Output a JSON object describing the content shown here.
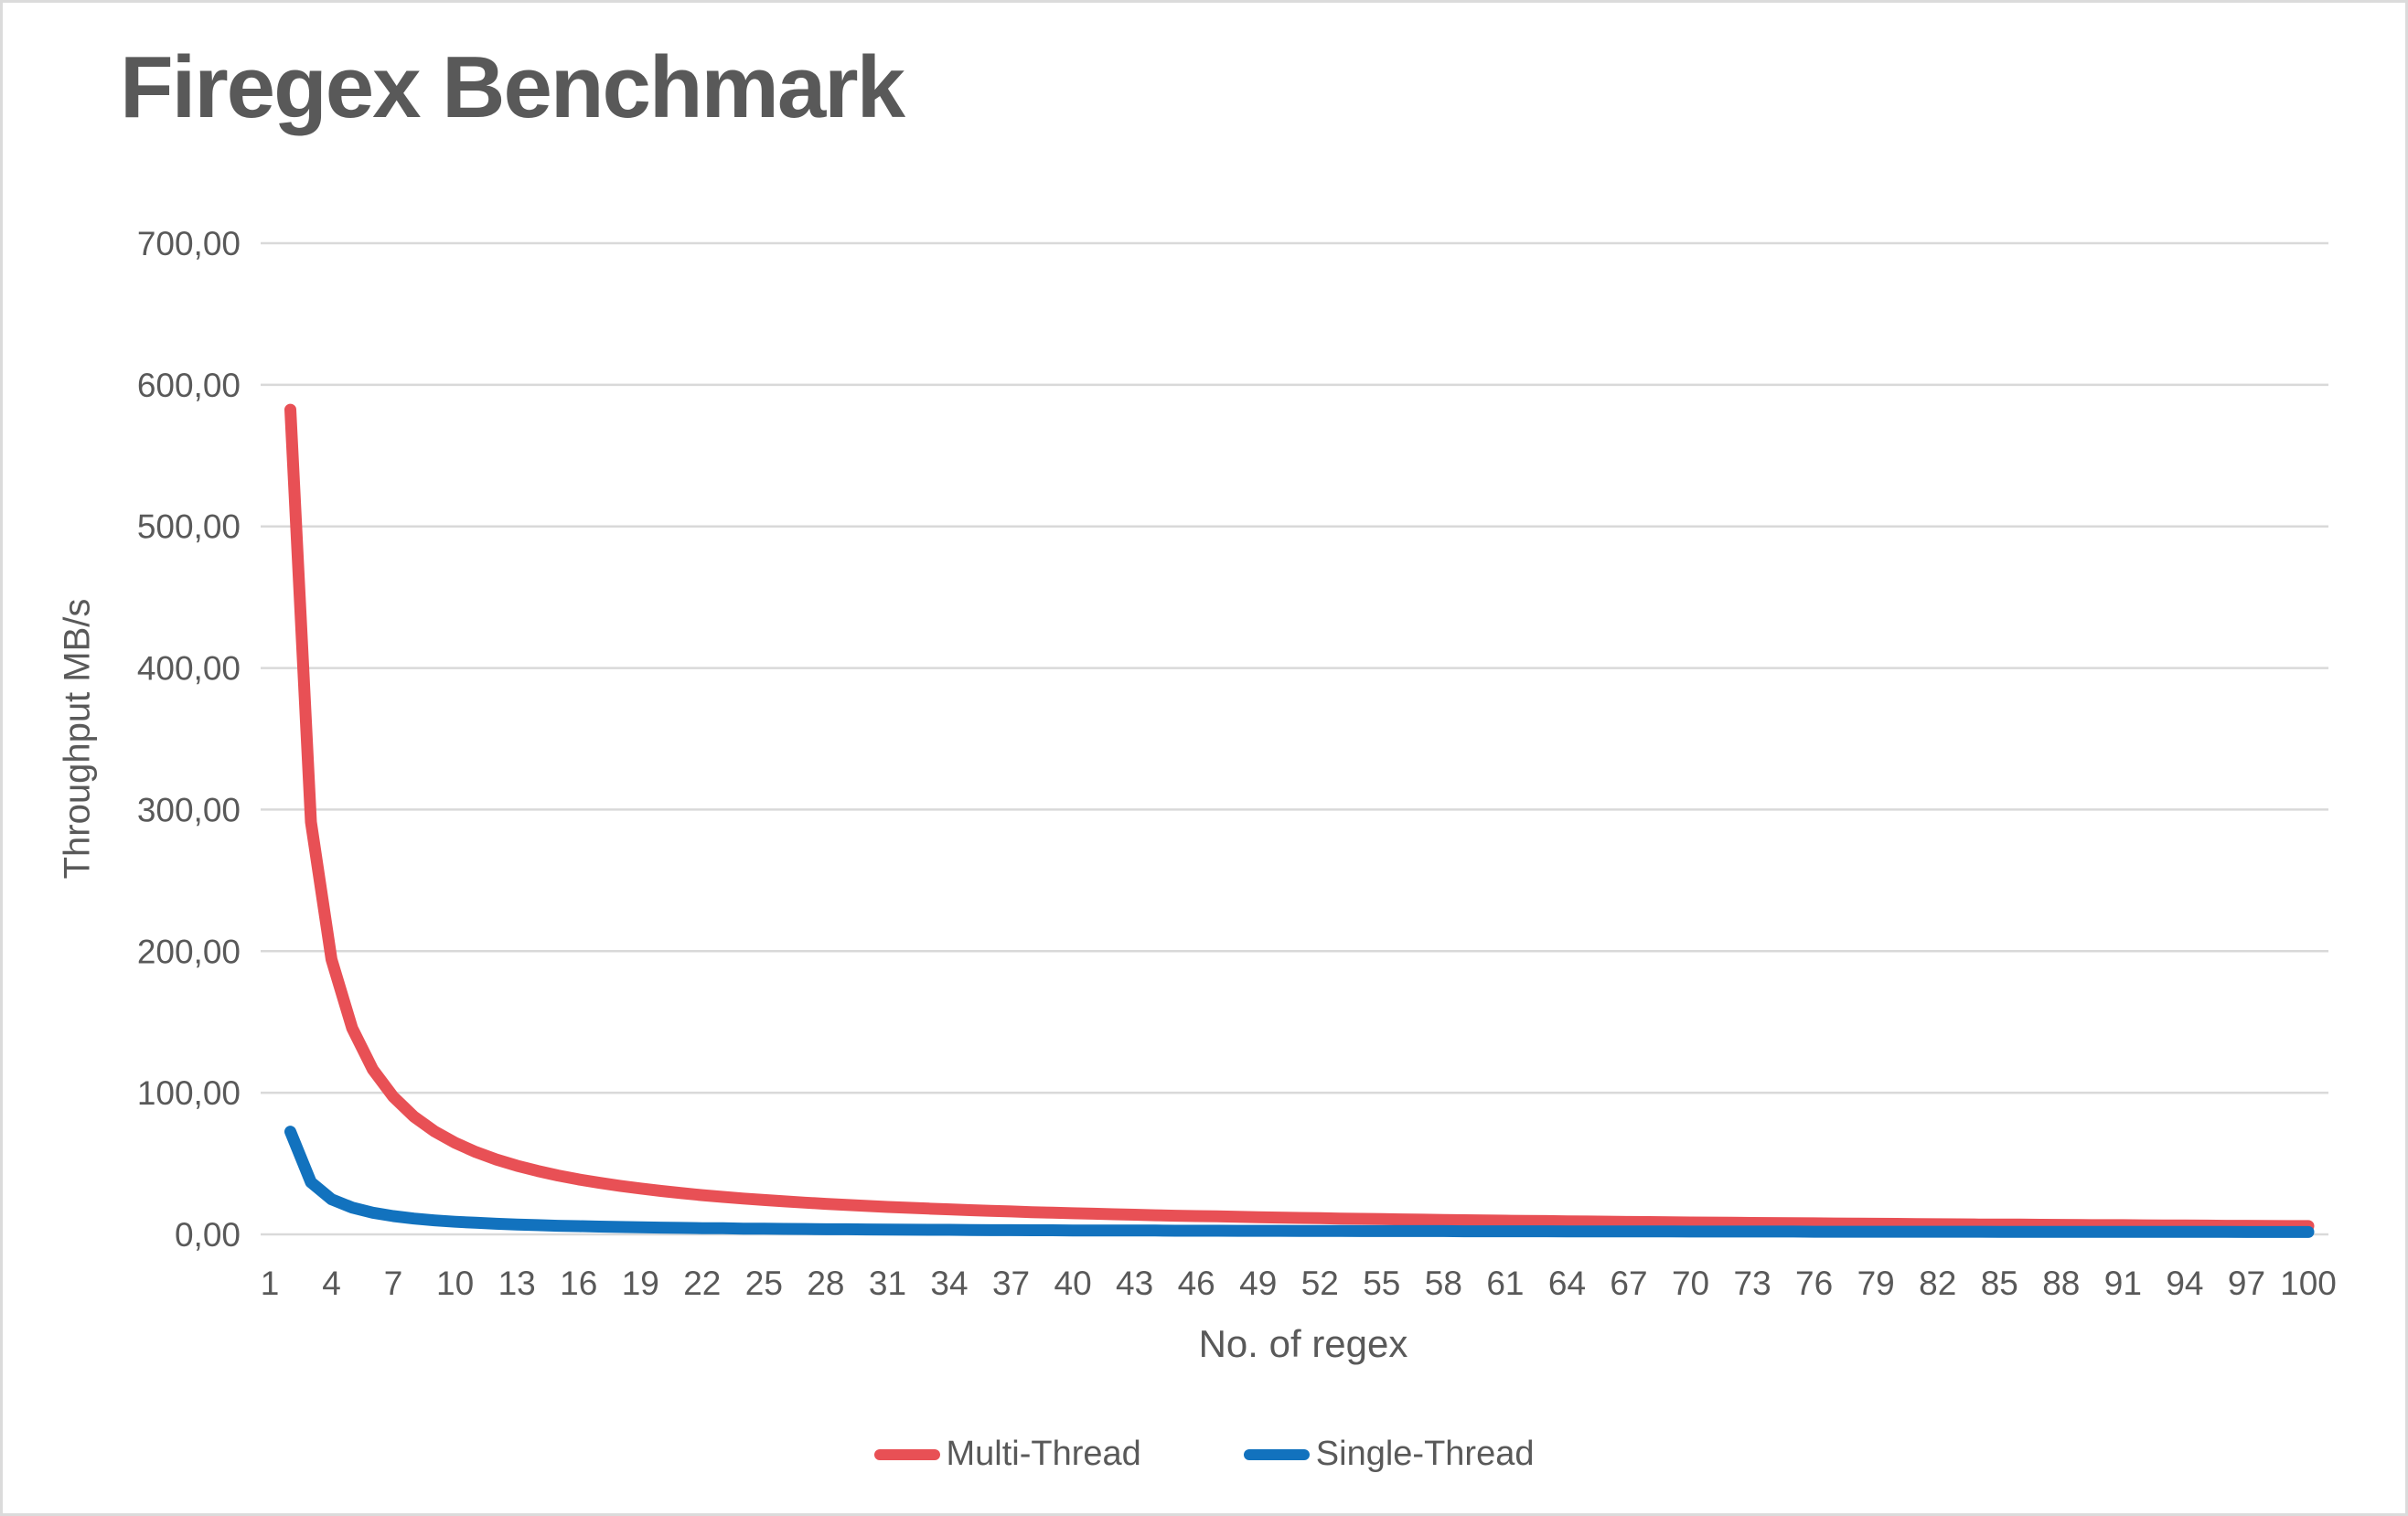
{
  "chart_data": {
    "type": "line",
    "title": "Firegex Benchmark",
    "xlabel": "No. of regex",
    "ylabel": "Throughput MB/s",
    "xlim": [
      1,
      100
    ],
    "ylim": [
      0,
      700
    ],
    "grid": true,
    "legend_position": "bottom",
    "decimal_separator": ",",
    "y_ticks": [
      {
        "value": 0,
        "label": "0,00"
      },
      {
        "value": 100,
        "label": "100,00"
      },
      {
        "value": 200,
        "label": "200,00"
      },
      {
        "value": 300,
        "label": "300,00"
      },
      {
        "value": 400,
        "label": "400,00"
      },
      {
        "value": 500,
        "label": "500,00"
      },
      {
        "value": 600,
        "label": "600,00"
      },
      {
        "value": 700,
        "label": "700,00"
      }
    ],
    "x_ticks": [
      1,
      4,
      7,
      10,
      13,
      16,
      19,
      22,
      25,
      28,
      31,
      34,
      37,
      40,
      43,
      46,
      49,
      52,
      55,
      58,
      61,
      64,
      67,
      70,
      73,
      76,
      79,
      82,
      85,
      88,
      91,
      94,
      97,
      100
    ],
    "x": [
      2,
      3,
      4,
      5,
      6,
      7,
      8,
      9,
      10,
      11,
      12,
      13,
      14,
      15,
      16,
      17,
      18,
      19,
      20,
      21,
      22,
      23,
      24,
      25,
      26,
      27,
      28,
      29,
      30,
      31,
      32,
      33,
      34,
      35,
      36,
      37,
      38,
      39,
      40,
      41,
      42,
      43,
      44,
      45,
      46,
      47,
      48,
      49,
      50,
      51,
      52,
      53,
      54,
      55,
      56,
      57,
      58,
      59,
      60,
      61,
      62,
      63,
      64,
      65,
      66,
      67,
      68,
      69,
      70,
      71,
      72,
      73,
      74,
      75,
      76,
      77,
      78,
      79,
      80,
      81,
      82,
      83,
      84,
      85,
      86,
      87,
      88,
      89,
      90,
      91,
      92,
      93,
      94,
      95,
      96,
      97,
      98,
      99,
      100
    ],
    "series": [
      {
        "name": "Multi-Thread",
        "color": "#E85055",
        "values": [
          582.4,
          291.2,
          194.1,
          145.6,
          116.5,
          97.1,
          83.2,
          72.8,
          64.7,
          58.2,
          52.9,
          48.5,
          44.8,
          41.6,
          38.8,
          36.4,
          34.3,
          32.4,
          30.7,
          29.1,
          27.7,
          26.5,
          25.3,
          24.3,
          23.3,
          22.4,
          21.6,
          20.8,
          20.1,
          19.4,
          18.8,
          18.2,
          17.7,
          17.1,
          16.6,
          16.2,
          15.7,
          15.3,
          14.9,
          14.6,
          14.2,
          13.9,
          13.5,
          13.2,
          12.9,
          12.7,
          12.4,
          12.1,
          11.9,
          11.6,
          11.4,
          11.2,
          11.0,
          10.8,
          10.6,
          10.4,
          10.2,
          10.0,
          9.9,
          9.7,
          9.5,
          9.4,
          9.2,
          9.1,
          9.0,
          8.8,
          8.7,
          8.6,
          8.4,
          8.3,
          8.2,
          8.1,
          8.0,
          7.9,
          7.8,
          7.7,
          7.6,
          7.5,
          7.4,
          7.3,
          7.2,
          7.1,
          7.0,
          6.9,
          6.9,
          6.8,
          6.7,
          6.6,
          6.5,
          6.5,
          6.4,
          6.3,
          6.3,
          6.2,
          6.1,
          6.1,
          6.0,
          5.9,
          5.9
        ]
      },
      {
        "name": "Single-Thread",
        "color": "#1272BE",
        "values": [
          72.5,
          36.8,
          24.8,
          18.9,
          15.3,
          12.9,
          11.2,
          9.9,
          8.9,
          8.2,
          7.5,
          7.0,
          6.5,
          6.1,
          5.8,
          5.5,
          5.2,
          5.0,
          4.8,
          4.6,
          4.4,
          4.3,
          4.1,
          4.0,
          3.9,
          3.8,
          3.6,
          3.6,
          3.5,
          3.4,
          3.3,
          3.2,
          3.2,
          3.1,
          3.0,
          3.0,
          2.9,
          2.9,
          2.8,
          2.8,
          2.7,
          2.7,
          2.7,
          2.6,
          2.6,
          2.6,
          2.5,
          2.5,
          2.5,
          2.4,
          2.4,
          2.4,
          2.3,
          2.3,
          2.3,
          2.3,
          2.3,
          2.2,
          2.2,
          2.2,
          2.2,
          2.2,
          2.1,
          2.1,
          2.1,
          2.1,
          2.1,
          2.1,
          2.0,
          2.0,
          2.0,
          2.0,
          2.0,
          2.0,
          1.9,
          1.9,
          1.9,
          1.9,
          1.9,
          1.9,
          1.9,
          1.9,
          1.9,
          1.8,
          1.8,
          1.8,
          1.8,
          1.8,
          1.8,
          1.8,
          1.8,
          1.8,
          1.8,
          1.8,
          1.8,
          1.7,
          1.7,
          1.7,
          1.7
        ]
      }
    ],
    "colors": {
      "text": "#595959",
      "gridline": "#D9D9D9",
      "frame_border": "#DBDBDB",
      "background": "#FFFFFF"
    }
  }
}
